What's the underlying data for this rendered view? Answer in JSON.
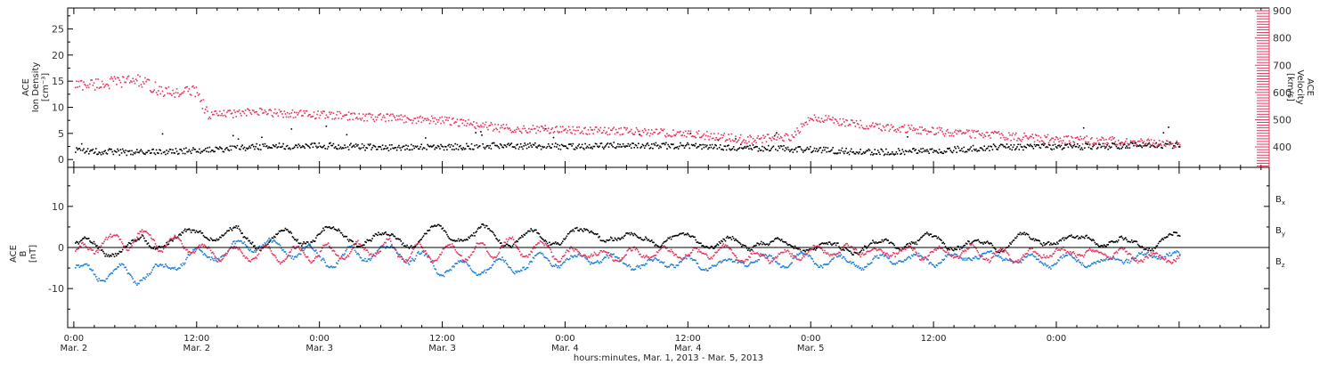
{
  "chart_data": [
    {
      "type": "scatter",
      "panel": "top",
      "ylabel_lines": [
        "ACE",
        "Ion Density",
        "[cm⁻³]"
      ],
      "ylim": [
        -1.5,
        29
      ],
      "yticks": [
        0,
        5,
        10,
        15,
        20,
        25
      ],
      "ylabel_right_lines": [
        "ACE",
        "Velocity",
        "[km/s]"
      ],
      "ylim_right": [
        325,
        910
      ],
      "yticks_right": [
        400,
        500,
        600,
        700,
        800,
        900
      ],
      "right_axis_color": "#e8355f",
      "series": [
        {
          "axis": "left",
          "color": "#000000",
          "x": [
            0,
            6,
            12,
            18,
            24,
            30,
            36,
            42,
            48,
            54,
            60,
            66,
            72,
            78,
            84,
            90,
            96,
            102,
            104,
            105,
            108
          ],
          "values": [
            1.8,
            1.5,
            1.8,
            2.6,
            2.8,
            2.4,
            2.5,
            2.8,
            2.6,
            2.9,
            2.7,
            2.4,
            2.0,
            1.5,
            1.8,
            2.5,
            2.6,
            2.7,
            3.0,
            3.0,
            2.8
          ]
        },
        {
          "axis": "right",
          "color": "#e8355f",
          "x": [
            0,
            3,
            6,
            9,
            12,
            13,
            18,
            24,
            30,
            36,
            42,
            48,
            54,
            60,
            66,
            70,
            72,
            78,
            84,
            90,
            96,
            102,
            108
          ],
          "values": [
            630,
            635,
            650,
            600,
            610,
            520,
            530,
            520,
            510,
            500,
            470,
            465,
            460,
            450,
            430,
            440,
            510,
            480,
            460,
            445,
            430,
            425,
            410
          ]
        }
      ]
    },
    {
      "type": "scatter",
      "panel": "bottom",
      "ylabel_lines": [
        "ACE",
        "B",
        "[nT]"
      ],
      "ylim": [
        -19.5,
        19.5
      ],
      "yticks": [
        -10,
        0,
        10
      ],
      "zero_line": true,
      "series": [
        {
          "name": "Bx",
          "color": "#000000",
          "x": [
            0,
            6,
            12,
            18,
            24,
            30,
            36,
            42,
            48,
            54,
            60,
            66,
            72,
            78,
            84,
            90,
            96,
            102,
            108
          ],
          "values": [
            1,
            0,
            4,
            2,
            3,
            2,
            4,
            2,
            4,
            3,
            2,
            1,
            0,
            1,
            2,
            1,
            2,
            1,
            2
          ]
        },
        {
          "name": "By",
          "color": "#1f7fd6",
          "x": [
            0,
            6,
            12,
            18,
            24,
            30,
            36,
            42,
            48,
            54,
            60,
            66,
            72,
            78,
            84,
            90,
            96,
            102,
            108
          ],
          "values": [
            -5,
            -7,
            -2,
            1,
            -2,
            -1,
            -4,
            -4,
            -3,
            -4,
            -4,
            -3,
            -3,
            -3,
            -2,
            -2,
            -3,
            -2,
            -2
          ]
        },
        {
          "name": "Bz",
          "color": "#e8355f",
          "x": [
            0,
            6,
            12,
            18,
            24,
            30,
            36,
            42,
            48,
            54,
            60,
            66,
            72,
            78,
            84,
            90,
            96,
            102,
            108
          ],
          "values": [
            -1,
            3,
            0,
            -2,
            -1,
            0,
            -2,
            0,
            -1,
            -2,
            -1,
            -2,
            -1,
            0,
            -1,
            -1,
            -1,
            -1,
            -2
          ]
        }
      ],
      "legend_lines": [
        "Bx",
        "By",
        "Bz"
      ],
      "legend_placement": "right"
    }
  ],
  "x_axis": {
    "xlim": [
      -0.6,
      116.8
    ],
    "ticks": [
      0,
      12,
      24,
      36,
      48,
      60,
      72,
      84,
      96
    ],
    "tick_labels": [
      "0:00",
      "12:00",
      "0:00",
      "12:00",
      "0:00",
      "12:00",
      "0:00",
      "12:00",
      "0:00"
    ],
    "date_labels": [
      "Mar. 2",
      "Mar. 2",
      "Mar. 3",
      "Mar. 3",
      "Mar. 4",
      "Mar. 4",
      "Mar. 5"
    ],
    "date_label_ticks": [
      0,
      12,
      24,
      36,
      48,
      60,
      72
    ],
    "xlabel": "hours:minutes, Mar.  1, 2013 - Mar.  5, 2013"
  },
  "colors": {
    "density": "#000000",
    "velocity": "#e8355f",
    "bx": "#000000",
    "by": "#1f7fd6",
    "bz": "#e8355f"
  }
}
